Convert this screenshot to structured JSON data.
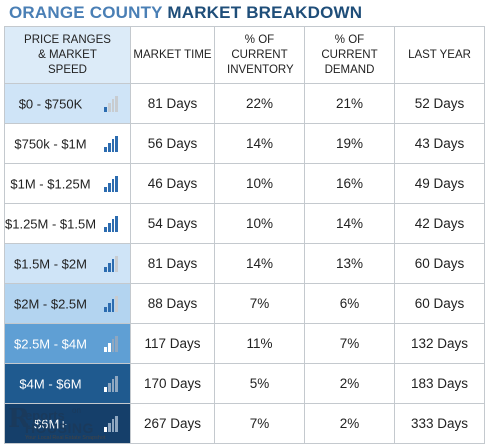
{
  "title": {
    "part1": "ORANGE COUNTY",
    "part2": "MARKET BREAKDOWN"
  },
  "header": {
    "col1": "PRICE RANGES & MARKET SPEED",
    "col2": "MARKET TIME",
    "col3": "% OF CURRENT INVENTORY",
    "col4": "% OF CURRENT DEMAND",
    "col5": "LAST YEAR"
  },
  "rows": [
    {
      "range": "$0 - $750K",
      "market_time": "81 Days",
      "inventory": "22%",
      "demand": "21%",
      "last_year": "52 Days",
      "speed_bars": 1,
      "bg": "#cfe4f7",
      "fg": "#222222"
    },
    {
      "range": "$750k - $1M",
      "market_time": "56 Days",
      "inventory": "14%",
      "demand": "19%",
      "last_year": "43 Days",
      "speed_bars": 4,
      "bg": "#ffffff",
      "fg": "#222222"
    },
    {
      "range": "$1M - $1.25M",
      "market_time": "46 Days",
      "inventory": "10%",
      "demand": "16%",
      "last_year": "49 Days",
      "speed_bars": 4,
      "bg": "#ffffff",
      "fg": "#222222"
    },
    {
      "range": "$1.25M - $1.5M",
      "market_time": "54 Days",
      "inventory": "10%",
      "demand": "14%",
      "last_year": "42 Days",
      "speed_bars": 4,
      "bg": "#ffffff",
      "fg": "#222222"
    },
    {
      "range": "$1.5M - $2M",
      "market_time": "81 Days",
      "inventory": "14%",
      "demand": "13%",
      "last_year": "60 Days",
      "speed_bars": 3,
      "bg": "#cfe4f7",
      "fg": "#222222"
    },
    {
      "range": "$2M - $2.5M",
      "market_time": "88 Days",
      "inventory": "7%",
      "demand": "6%",
      "last_year": "60 Days",
      "speed_bars": 3,
      "bg": "#b3d4f0",
      "fg": "#222222"
    },
    {
      "range": "$2.5M - $4M",
      "market_time": "117 Days",
      "inventory": "11%",
      "demand": "7%",
      "last_year": "132 Days",
      "speed_bars": 2,
      "bg": "#5f9fd4",
      "fg": "#ffffff"
    },
    {
      "range": "$4M - $6M",
      "market_time": "170 Days",
      "inventory": "5%",
      "demand": "2%",
      "last_year": "183 Days",
      "speed_bars": 1,
      "bg": "#1f5a8f",
      "fg": "#ffffff"
    },
    {
      "range": "$6M+",
      "market_time": "267 Days",
      "inventory": "7%",
      "demand": "2%",
      "last_year": "333 Days",
      "speed_bars": 1,
      "bg": "#153f6a",
      "fg": "#ffffff"
    }
  ],
  "logo": {
    "letter": "R",
    "word1": "eports",
    "word1_suffix": "on",
    "word2": "HOUSING",
    "tagline": "Your Local Real Estate Snapshot"
  },
  "colors": {
    "title_light": "#4a7fb5",
    "title_dark": "#1f4e79",
    "bar_active": "#2c6cb0",
    "bar_inactive": "#c8ccd0",
    "bar_active_on_dark": "#ffffff",
    "bar_inactive_on_dark": "#8fa7c0"
  }
}
